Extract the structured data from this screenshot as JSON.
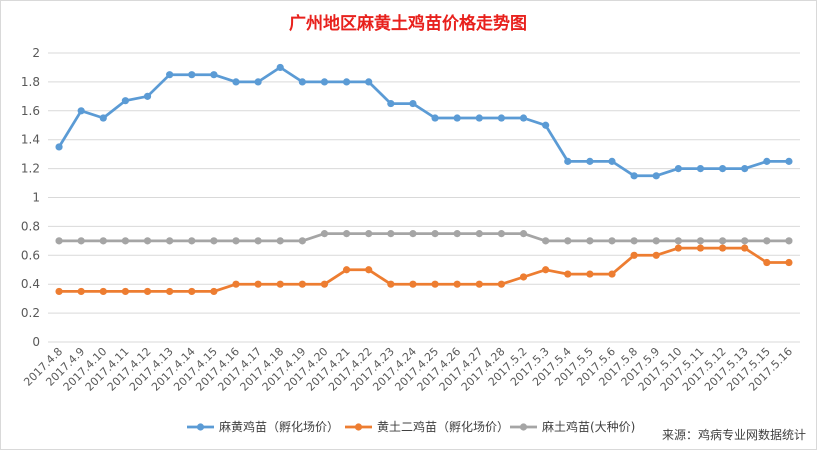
{
  "chart_data": {
    "type": "line",
    "title": "广州地区麻黄土鸡苗价格走势图",
    "source_note": "来源：鸡病专业网数据统计",
    "ylim": [
      0,
      2
    ],
    "yticks": [
      0,
      0.2,
      0.4,
      0.6,
      0.8,
      1,
      1.2,
      1.4,
      1.6,
      1.8,
      2
    ],
    "ytick_labels": [
      "0",
      "0.2",
      "0.4",
      "0.6",
      "0.8",
      "1",
      "1.2",
      "1.4",
      "1.6",
      "1.8",
      "2"
    ],
    "grid": true,
    "legend_position": "bottom",
    "x": [
      "2017.4.8",
      "2017.4.9",
      "2017.4.10",
      "2017.4.11",
      "2017.4.12",
      "2017.4.13",
      "2017.4.14",
      "2017.4.15",
      "2017.4.16",
      "2017.4.17",
      "2017.4.18",
      "2017.4.19",
      "2017.4.20",
      "2017.4.21",
      "2017.4.22",
      "2017.4.23",
      "2017.4.24",
      "2017.4.25",
      "2017.4.26",
      "2017.4.27",
      "2017.4.28",
      "2017.5.2",
      "2017.5.3",
      "2017.5.4",
      "2017.5.5",
      "2017.5.6",
      "2017.5.8",
      "2017.5.9",
      "2017.5.10",
      "2017.5.11",
      "2017.5.12",
      "2017.5.13",
      "2017.5.15",
      "2017.5.16"
    ],
    "series": [
      {
        "name": "麻黄鸡苗（孵化场价）",
        "color": "#5b9bd5",
        "values": [
          1.35,
          1.6,
          1.55,
          1.67,
          1.7,
          1.85,
          1.85,
          1.85,
          1.8,
          1.8,
          1.9,
          1.8,
          1.8,
          1.8,
          1.8,
          1.65,
          1.65,
          1.55,
          1.55,
          1.55,
          1.55,
          1.55,
          1.5,
          1.25,
          1.25,
          1.25,
          1.15,
          1.15,
          1.2,
          1.2,
          1.2,
          1.2,
          1.25,
          1.25
        ]
      },
      {
        "name": "黄土二鸡苗（孵化场价）",
        "color": "#ed7d31",
        "values": [
          0.35,
          0.35,
          0.35,
          0.35,
          0.35,
          0.35,
          0.35,
          0.35,
          0.4,
          0.4,
          0.4,
          0.4,
          0.4,
          0.5,
          0.5,
          0.4,
          0.4,
          0.4,
          0.4,
          0.4,
          0.4,
          0.45,
          0.5,
          0.47,
          0.47,
          0.47,
          0.6,
          0.6,
          0.65,
          0.65,
          0.65,
          0.65,
          0.55,
          0.55
        ]
      },
      {
        "name": "麻土鸡苗(大种价)",
        "color": "#a5a5a5",
        "values": [
          0.7,
          0.7,
          0.7,
          0.7,
          0.7,
          0.7,
          0.7,
          0.7,
          0.7,
          0.7,
          0.7,
          0.7,
          0.75,
          0.75,
          0.75,
          0.75,
          0.75,
          0.75,
          0.75,
          0.75,
          0.75,
          0.75,
          0.7,
          0.7,
          0.7,
          0.7,
          0.7,
          0.7,
          0.7,
          0.7,
          0.7,
          0.7,
          0.7,
          0.7
        ]
      }
    ]
  }
}
